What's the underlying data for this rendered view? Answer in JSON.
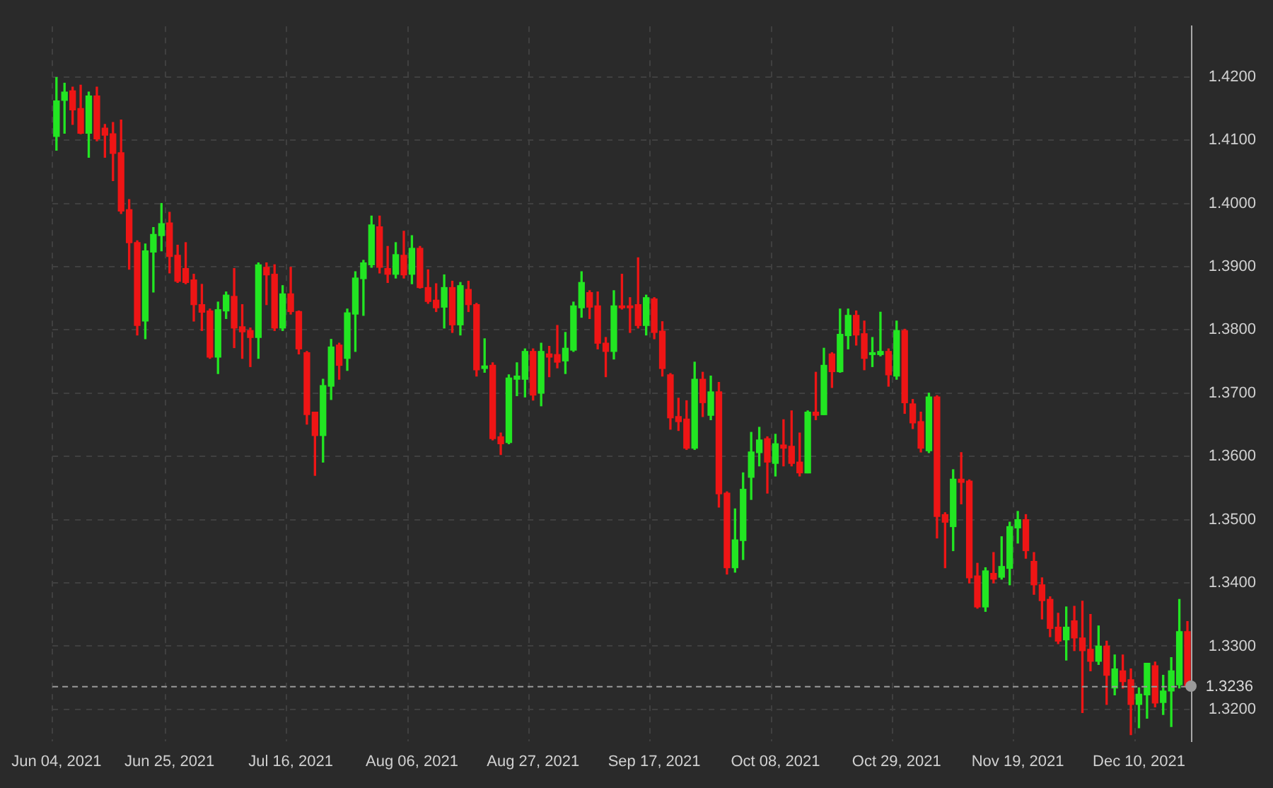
{
  "chart_data": {
    "type": "candlestick",
    "categories": [
      "Jun 04, 2021",
      null,
      null,
      null,
      null,
      null,
      null,
      null,
      null,
      null,
      null,
      null,
      null,
      null,
      "Jun 25, 2021",
      null,
      null,
      null,
      null,
      null,
      null,
      null,
      null,
      null,
      null,
      null,
      null,
      null,
      null,
      "Jul 16, 2021",
      null,
      null,
      null,
      null,
      null,
      null,
      null,
      null,
      null,
      null,
      null,
      null,
      null,
      null,
      "Aug 06, 2021",
      null,
      null,
      null,
      null,
      null,
      null,
      null,
      null,
      null,
      null,
      null,
      null,
      null,
      null,
      "Aug 27, 2021",
      null,
      null,
      null,
      null,
      null,
      null,
      null,
      null,
      null,
      null,
      null,
      null,
      null,
      null,
      "Sep 17, 2021",
      null,
      null,
      null,
      null,
      null,
      null,
      null,
      null,
      null,
      null,
      null,
      null,
      null,
      null,
      "Oct 08, 2021",
      null,
      null,
      null,
      null,
      null,
      null,
      null,
      null,
      null,
      null,
      null,
      null,
      null,
      null,
      "Oct 29, 2021",
      null,
      null,
      null,
      null,
      null,
      null,
      null,
      null,
      null,
      null,
      null,
      null,
      null,
      null,
      "Nov 19, 2021",
      null,
      null,
      null,
      null,
      null,
      null,
      null,
      null,
      null,
      null,
      null,
      null,
      null,
      null,
      "Dec 10, 2021",
      null,
      null,
      null,
      null,
      null,
      null
    ],
    "ohlc": [
      [
        1.4106,
        1.4199,
        1.4084,
        1.4162
      ],
      [
        1.4163,
        1.419,
        1.4111,
        1.4176
      ],
      [
        1.4178,
        1.4184,
        1.4125,
        1.4148
      ],
      [
        1.415,
        1.4187,
        1.411,
        1.4111
      ],
      [
        1.4111,
        1.4176,
        1.4073,
        1.417
      ],
      [
        1.417,
        1.4184,
        1.4099,
        1.4102
      ],
      [
        1.4119,
        1.4125,
        1.4073,
        1.4108
      ],
      [
        1.411,
        1.4128,
        1.4036,
        1.4079
      ],
      [
        1.408,
        1.4132,
        1.3984,
        1.3988
      ],
      [
        1.399,
        1.4006,
        1.3896,
        1.3938
      ],
      [
        1.3938,
        1.3941,
        1.3792,
        1.3807
      ],
      [
        1.3814,
        1.3936,
        1.3786,
        1.3925
      ],
      [
        1.3923,
        1.3962,
        1.386,
        1.3951
      ],
      [
        1.3949,
        1.4,
        1.3925,
        1.3968
      ],
      [
        1.3969,
        1.3986,
        1.389,
        1.3916
      ],
      [
        1.3918,
        1.3934,
        1.3875,
        1.3877
      ],
      [
        1.3897,
        1.3938,
        1.3873,
        1.3875
      ],
      [
        1.3879,
        1.3888,
        1.3814,
        1.384
      ],
      [
        1.384,
        1.3872,
        1.3799,
        1.3828
      ],
      [
        1.383,
        1.3833,
        1.3755,
        1.3757
      ],
      [
        1.3757,
        1.3844,
        1.3731,
        1.3832
      ],
      [
        1.383,
        1.386,
        1.3818,
        1.3855
      ],
      [
        1.3853,
        1.3897,
        1.3772,
        1.3803
      ],
      [
        1.3805,
        1.384,
        1.3755,
        1.3797
      ],
      [
        1.3799,
        1.3803,
        1.3742,
        1.3788
      ],
      [
        1.3788,
        1.3906,
        1.3755,
        1.3903
      ],
      [
        1.3899,
        1.3906,
        1.384,
        1.3887
      ],
      [
        1.3888,
        1.3903,
        1.3799,
        1.3803
      ],
      [
        1.3803,
        1.387,
        1.3799,
        1.3857
      ],
      [
        1.3857,
        1.3899,
        1.3825,
        1.3829
      ],
      [
        1.3829,
        1.383,
        1.3762,
        1.377
      ],
      [
        1.3764,
        1.3766,
        1.3651,
        1.3666
      ],
      [
        1.367,
        1.367,
        1.357,
        1.3633
      ],
      [
        1.3633,
        1.3722,
        1.3591,
        1.3712
      ],
      [
        1.3711,
        1.3785,
        1.369,
        1.3773
      ],
      [
        1.3776,
        1.3779,
        1.3722,
        1.3744
      ],
      [
        1.3755,
        1.3833,
        1.3736,
        1.3827
      ],
      [
        1.3825,
        1.3892,
        1.3766,
        1.3882
      ],
      [
        1.3881,
        1.391,
        1.3823,
        1.3906
      ],
      [
        1.3903,
        1.398,
        1.3899,
        1.3966
      ],
      [
        1.3963,
        1.398,
        1.389,
        1.3899
      ],
      [
        1.3897,
        1.3932,
        1.3875,
        1.3888
      ],
      [
        1.3888,
        1.3938,
        1.3882,
        1.3919
      ],
      [
        1.3918,
        1.3956,
        1.3882,
        1.3887
      ],
      [
        1.3888,
        1.3949,
        1.3873,
        1.3929
      ],
      [
        1.3929,
        1.3932,
        1.3866,
        1.3867
      ],
      [
        1.3867,
        1.3895,
        1.3842,
        1.3845
      ],
      [
        1.3847,
        1.3873,
        1.3829,
        1.3835
      ],
      [
        1.3836,
        1.3887,
        1.3803,
        1.3867
      ],
      [
        1.3867,
        1.3877,
        1.3796,
        1.3808
      ],
      [
        1.3808,
        1.3875,
        1.3792,
        1.387
      ],
      [
        1.3864,
        1.3877,
        1.3829,
        1.384
      ],
      [
        1.384,
        1.3842,
        1.3727,
        1.3737
      ],
      [
        1.3739,
        1.3786,
        1.3733,
        1.3743
      ],
      [
        1.3744,
        1.3748,
        1.3626,
        1.3628
      ],
      [
        1.3631,
        1.3637,
        1.3603,
        1.362
      ],
      [
        1.3622,
        1.3729,
        1.362,
        1.3724
      ],
      [
        1.3722,
        1.3748,
        1.3696,
        1.3727
      ],
      [
        1.3722,
        1.377,
        1.3694,
        1.3766
      ],
      [
        1.3766,
        1.377,
        1.3689,
        1.3697
      ],
      [
        1.37,
        1.3779,
        1.368,
        1.3766
      ],
      [
        1.3762,
        1.3774,
        1.3726,
        1.3757
      ],
      [
        1.3761,
        1.3807,
        1.374,
        1.3749
      ],
      [
        1.3751,
        1.3796,
        1.3731,
        1.3771
      ],
      [
        1.3768,
        1.3844,
        1.3766,
        1.3838
      ],
      [
        1.3835,
        1.3892,
        1.382,
        1.3875
      ],
      [
        1.3859,
        1.3862,
        1.3818,
        1.3836
      ],
      [
        1.3838,
        1.386,
        1.377,
        1.3779
      ],
      [
        1.3779,
        1.3788,
        1.3726,
        1.3766
      ],
      [
        1.3766,
        1.3862,
        1.3754,
        1.3838
      ],
      [
        1.3838,
        1.3888,
        1.3833,
        1.3835
      ],
      [
        1.3838,
        1.3851,
        1.3796,
        1.3835
      ],
      [
        1.384,
        1.3914,
        1.3803,
        1.3807
      ],
      [
        1.3807,
        1.3855,
        1.3792,
        1.3851
      ],
      [
        1.3849,
        1.3851,
        1.3786,
        1.3796
      ],
      [
        1.3798,
        1.3813,
        1.3727,
        1.3739
      ],
      [
        1.3729,
        1.3731,
        1.3643,
        1.3661
      ],
      [
        1.3663,
        1.3692,
        1.3641,
        1.3655
      ],
      [
        1.3659,
        1.3688,
        1.3611,
        1.3613
      ],
      [
        1.3613,
        1.3749,
        1.3611,
        1.3722
      ],
      [
        1.3722,
        1.3733,
        1.3663,
        1.3685
      ],
      [
        1.3665,
        1.3727,
        1.3658,
        1.3702
      ],
      [
        1.3702,
        1.3717,
        1.352,
        1.3541
      ],
      [
        1.3542,
        1.3544,
        1.3414,
        1.3424
      ],
      [
        1.3424,
        1.3517,
        1.3417,
        1.3468
      ],
      [
        1.3467,
        1.3574,
        1.3437,
        1.3548
      ],
      [
        1.3567,
        1.3638,
        1.3532,
        1.3607
      ],
      [
        1.3606,
        1.3646,
        1.3585,
        1.3626
      ],
      [
        1.3628,
        1.3631,
        1.3542,
        1.3591
      ],
      [
        1.3589,
        1.3635,
        1.3569,
        1.362
      ],
      [
        1.3618,
        1.3658,
        1.3585,
        1.3613
      ],
      [
        1.3616,
        1.3672,
        1.3585,
        1.3589
      ],
      [
        1.3591,
        1.3637,
        1.3569,
        1.3574
      ],
      [
        1.3574,
        1.3672,
        1.3574,
        1.367
      ],
      [
        1.367,
        1.3733,
        1.3658,
        1.3665
      ],
      [
        1.3666,
        1.3771,
        1.3666,
        1.3744
      ],
      [
        1.3762,
        1.3764,
        1.3709,
        1.3734
      ],
      [
        1.3734,
        1.3833,
        1.3733,
        1.3793
      ],
      [
        1.3791,
        1.3833,
        1.377,
        1.3823
      ],
      [
        1.3823,
        1.383,
        1.3776,
        1.3792
      ],
      [
        1.3794,
        1.3814,
        1.3737,
        1.3755
      ],
      [
        1.3761,
        1.3788,
        1.3742,
        1.3764
      ],
      [
        1.3761,
        1.3828,
        1.3759,
        1.3766
      ],
      [
        1.3766,
        1.377,
        1.3711,
        1.3729
      ],
      [
        1.3727,
        1.3814,
        1.3722,
        1.3799
      ],
      [
        1.3799,
        1.3801,
        1.3668,
        1.3685
      ],
      [
        1.3683,
        1.369,
        1.3644,
        1.3653
      ],
      [
        1.3655,
        1.367,
        1.3607,
        1.3613
      ],
      [
        1.3609,
        1.37,
        1.3606,
        1.3694
      ],
      [
        1.3694,
        1.3696,
        1.3471,
        1.3505
      ],
      [
        1.3508,
        1.3511,
        1.3424,
        1.3496
      ],
      [
        1.3489,
        1.3579,
        1.3451,
        1.3564
      ],
      [
        1.3564,
        1.3606,
        1.3525,
        1.3559
      ],
      [
        1.3561,
        1.3563,
        1.34,
        1.3408
      ],
      [
        1.3411,
        1.3431,
        1.336,
        1.3362
      ],
      [
        1.3362,
        1.3424,
        1.3355,
        1.3419
      ],
      [
        1.3415,
        1.3448,
        1.34,
        1.3406
      ],
      [
        1.3409,
        1.3473,
        1.3406,
        1.3426
      ],
      [
        1.3423,
        1.3496,
        1.3397,
        1.3489
      ],
      [
        1.3487,
        1.3513,
        1.3463,
        1.35
      ],
      [
        1.35,
        1.3508,
        1.3439,
        1.3451
      ],
      [
        1.3434,
        1.3448,
        1.3382,
        1.3397
      ],
      [
        1.3397,
        1.3408,
        1.3343,
        1.3372
      ],
      [
        1.3374,
        1.3378,
        1.3315,
        1.3328
      ],
      [
        1.333,
        1.3352,
        1.3304,
        1.3308
      ],
      [
        1.331,
        1.3362,
        1.3278,
        1.333
      ],
      [
        1.334,
        1.3363,
        1.3293,
        1.3313
      ],
      [
        1.3313,
        1.3371,
        1.3195,
        1.3293
      ],
      [
        1.3295,
        1.335,
        1.3261,
        1.3276
      ],
      [
        1.3276,
        1.3332,
        1.3271,
        1.33
      ],
      [
        1.33,
        1.3308,
        1.3208,
        1.3254
      ],
      [
        1.3234,
        1.3286,
        1.3223,
        1.3264
      ],
      [
        1.3261,
        1.3286,
        1.3234,
        1.3244
      ],
      [
        1.3247,
        1.3264,
        1.316,
        1.3208
      ],
      [
        1.3208,
        1.3234,
        1.3171,
        1.3224
      ],
      [
        1.3223,
        1.3273,
        1.3186,
        1.3273
      ],
      [
        1.3269,
        1.3275,
        1.3204,
        1.321
      ],
      [
        1.3211,
        1.3254,
        1.3192,
        1.3229
      ],
      [
        1.3229,
        1.3282,
        1.3173,
        1.3261
      ],
      [
        1.3239,
        1.3374,
        1.3234,
        1.3323
      ],
      [
        1.3323,
        1.3339,
        1.3232,
        1.3236
      ]
    ],
    "colors": [
      "#22e622",
      "#22e622",
      "#ee1515",
      "#ee1515",
      "#22e622",
      "#ee1515",
      "#ee1515",
      "#ee1515",
      "#ee1515",
      "#ee1515",
      "#ee1515",
      "#22e622",
      "#22e622",
      "#22e622",
      "#ee1515",
      "#ee1515",
      "#ee1515",
      "#ee1515",
      "#ee1515",
      "#ee1515",
      "#22e622",
      "#22e622",
      "#ee1515",
      "#ee1515",
      "#ee1515",
      "#22e622",
      "#ee1515",
      "#ee1515",
      "#22e622",
      "#ee1515",
      "#ee1515",
      "#ee1515",
      "#ee1515",
      "#22e622",
      "#22e622",
      "#ee1515",
      "#22e622",
      "#22e622",
      "#22e622",
      "#22e622",
      "#ee1515",
      "#ee1515",
      "#22e622",
      "#ee1515",
      "#22e622",
      "#ee1515",
      "#ee1515",
      "#ee1515",
      "#22e622",
      "#ee1515",
      "#22e622",
      "#ee1515",
      "#ee1515",
      "#22e622",
      "#ee1515",
      "#ee1515",
      "#22e622",
      "#22e622",
      "#22e622",
      "#ee1515",
      "#22e622",
      "#ee1515",
      "#ee1515",
      "#22e622",
      "#22e622",
      "#22e622",
      "#ee1515",
      "#ee1515",
      "#ee1515",
      "#22e622",
      "#ee1515",
      "#ee1515",
      "#ee1515",
      "#22e622",
      "#ee1515",
      "#ee1515",
      "#ee1515",
      "#ee1515",
      "#ee1515",
      "#22e622",
      "#ee1515",
      "#22e622",
      "#ee1515",
      "#ee1515",
      "#22e622",
      "#22e622",
      "#22e622",
      "#22e622",
      "#ee1515",
      "#22e622",
      "#ee1515",
      "#ee1515",
      "#ee1515",
      "#22e622",
      "#ee1515",
      "#22e622",
      "#ee1515",
      "#22e622",
      "#22e622",
      "#ee1515",
      "#ee1515",
      "#22e622",
      "#22e622",
      "#ee1515",
      "#22e622",
      "#ee1515",
      "#ee1515",
      "#ee1515",
      "#22e622",
      "#ee1515",
      "#ee1515",
      "#22e622",
      "#ee1515",
      "#ee1515",
      "#ee1515",
      "#22e622",
      "#ee1515",
      "#22e622",
      "#22e622",
      "#22e622",
      "#ee1515",
      "#ee1515",
      "#ee1515",
      "#ee1515",
      "#ee1515",
      "#22e622",
      "#ee1515",
      "#ee1515",
      "#ee1515",
      "#22e622",
      "#ee1515",
      "#22e622",
      "#ee1515",
      "#ee1515",
      "#22e622",
      "#22e622",
      "#ee1515",
      "#22e622",
      "#22e622",
      "#22e622",
      "#ee1515"
    ],
    "ylim": [
      1.315,
      1.428
    ],
    "yticks": [
      {
        "value": 1.32,
        "label": "1.3200"
      },
      {
        "value": 1.33,
        "label": "1.3300"
      },
      {
        "value": 1.34,
        "label": "1.3400"
      },
      {
        "value": 1.35,
        "label": "1.3500"
      },
      {
        "value": 1.36,
        "label": "1.3600"
      },
      {
        "value": 1.37,
        "label": "1.3700"
      },
      {
        "value": 1.38,
        "label": "1.3800"
      },
      {
        "value": 1.39,
        "label": "1.3900"
      },
      {
        "value": 1.4,
        "label": "1.4000"
      },
      {
        "value": 1.41,
        "label": "1.4100"
      },
      {
        "value": 1.42,
        "label": "1.4200"
      }
    ],
    "ref_lines": [
      {
        "axis": "y",
        "value": 1.3236,
        "label": "1.3236",
        "color": "#9a9a9a",
        "line_style": "dashed"
      }
    ],
    "grid": true,
    "legend": false
  }
}
